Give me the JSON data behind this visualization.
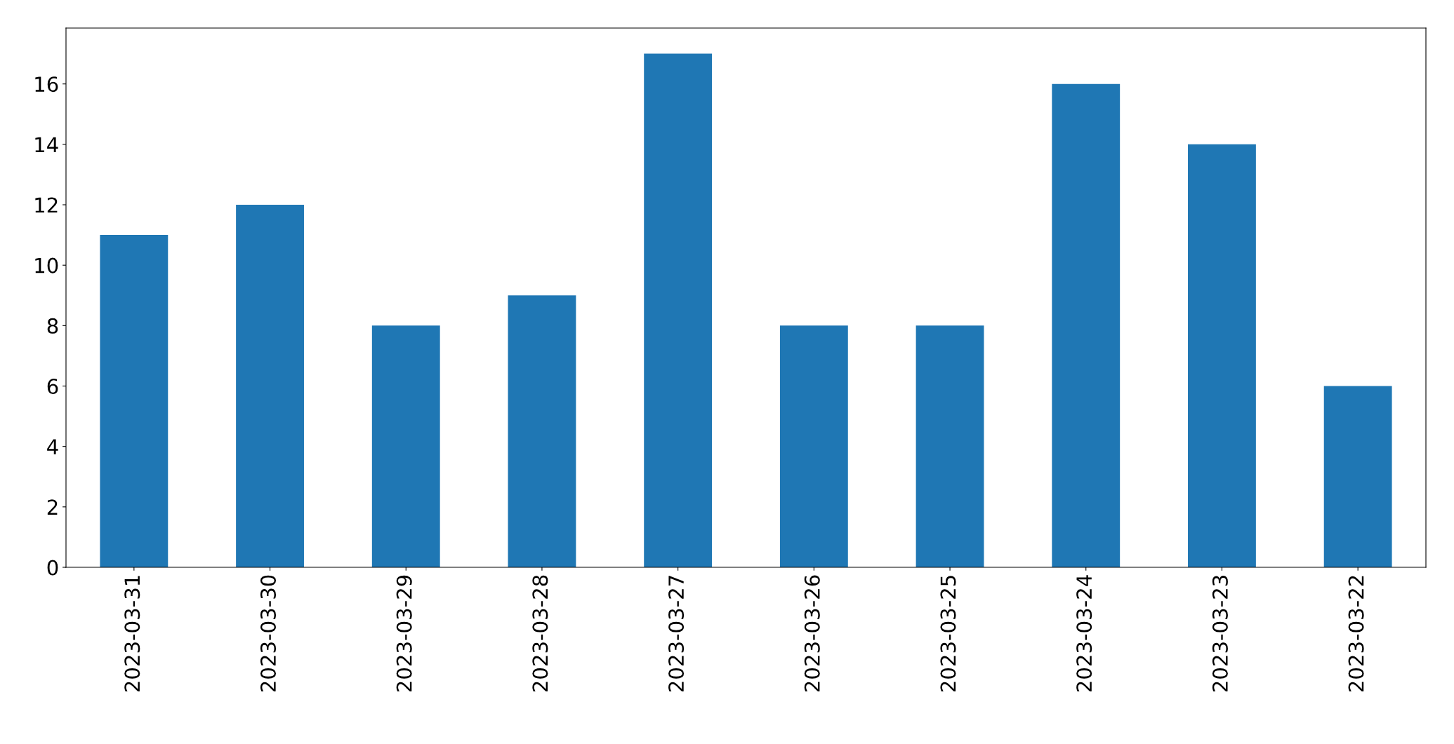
{
  "chart_data": {
    "type": "bar",
    "categories": [
      "2023-03-31",
      "2023-03-30",
      "2023-03-29",
      "2023-03-28",
      "2023-03-27",
      "2023-03-26",
      "2023-03-25",
      "2023-03-24",
      "2023-03-23",
      "2023-03-22"
    ],
    "values": [
      11,
      12,
      8,
      9,
      17,
      8,
      8,
      16,
      14,
      6
    ],
    "color": "#1f77b4",
    "ylim": [
      0,
      17.85
    ],
    "yticks": [
      0,
      2,
      4,
      6,
      8,
      10,
      12,
      14,
      16
    ],
    "grid": false
  }
}
